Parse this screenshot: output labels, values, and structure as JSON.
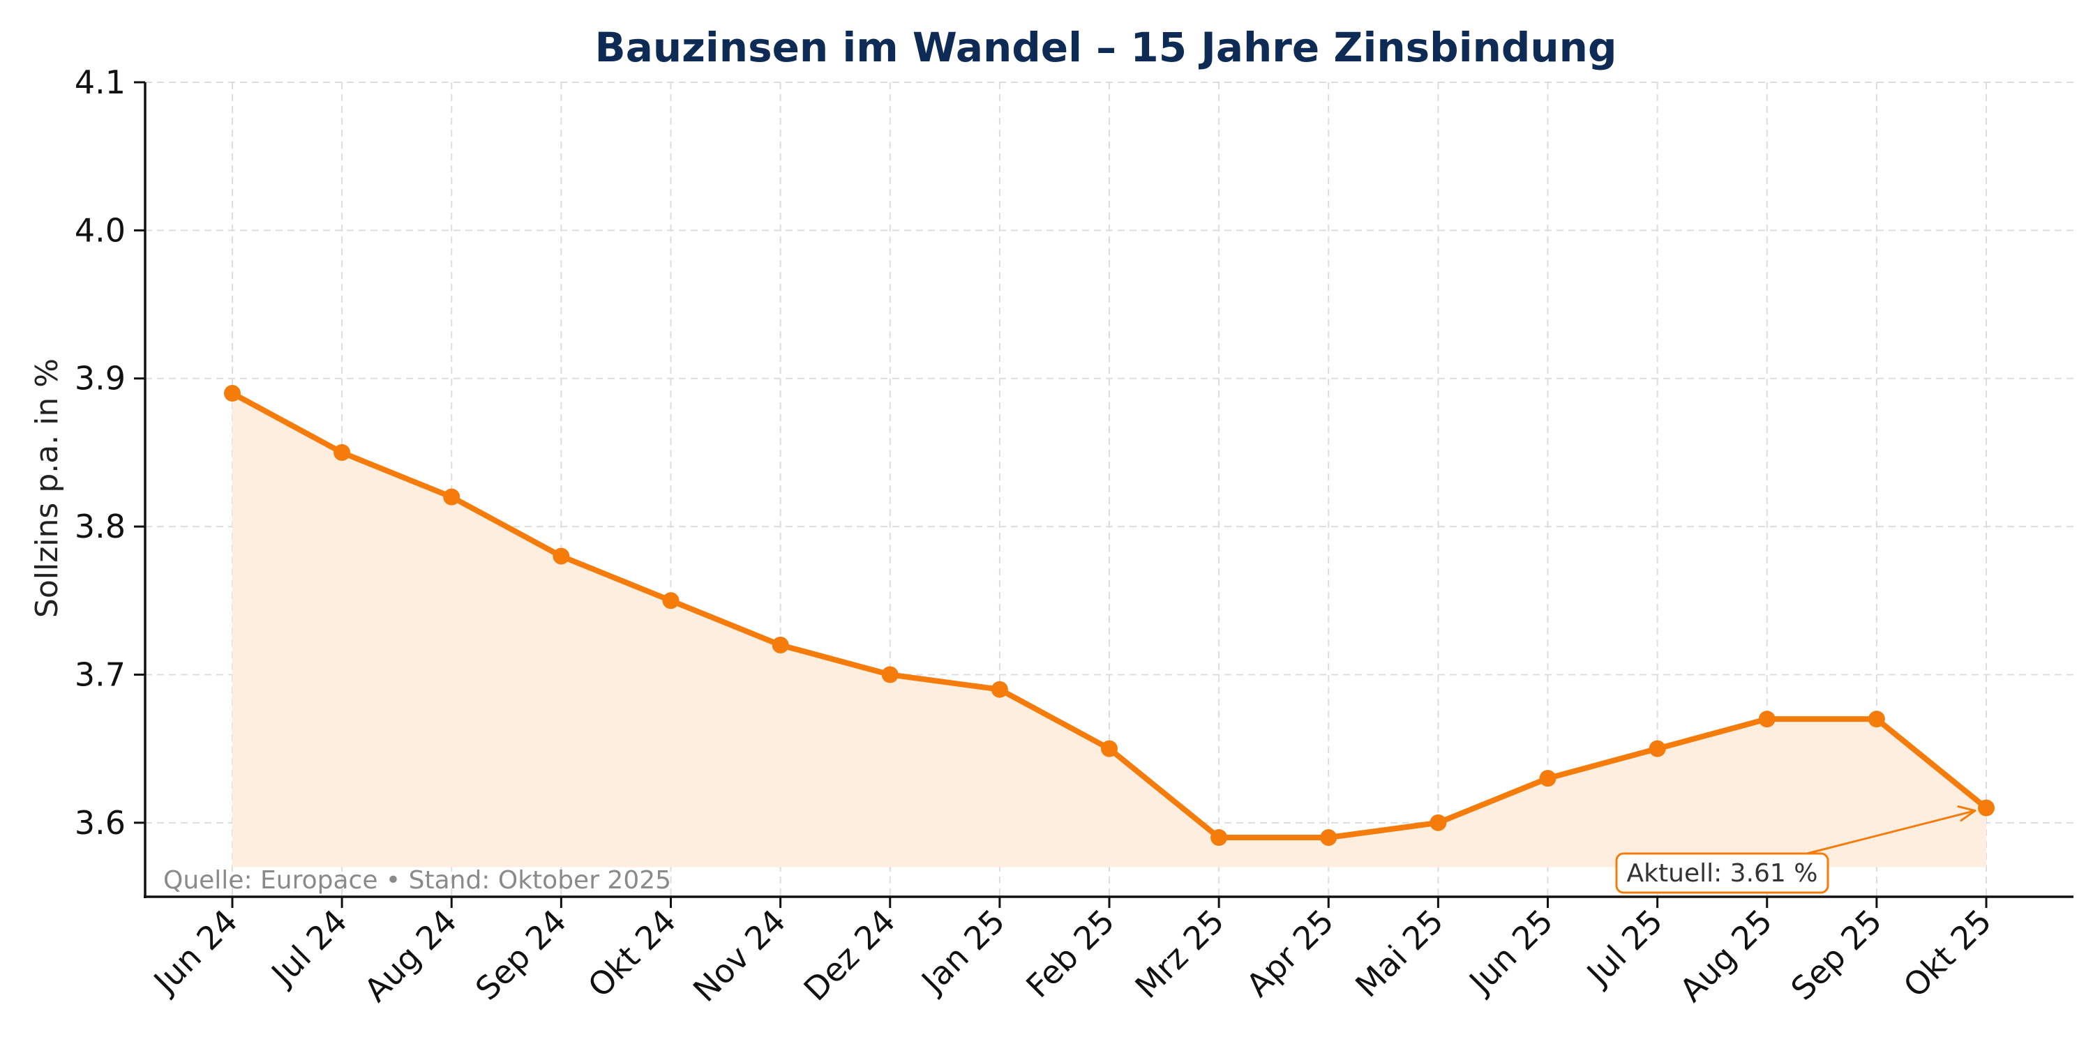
{
  "chart_data": {
    "type": "line",
    "title": "Bauzinsen im Wandel – 15 Jahre Zinsbindung",
    "xlabel": "",
    "ylabel": "Sollzins p.a. in %",
    "categories": [
      "Jun 24",
      "Jul 24",
      "Aug 24",
      "Sep 24",
      "Okt 24",
      "Nov 24",
      "Dez 24",
      "Jan 25",
      "Feb 25",
      "Mrz 25",
      "Apr 25",
      "Mai 25",
      "Jun 25",
      "Jul 25",
      "Aug 25",
      "Sep 25",
      "Okt 25"
    ],
    "series": [
      {
        "values": [
          3.89,
          3.85,
          3.82,
          3.78,
          3.75,
          3.72,
          3.7,
          3.69,
          3.65,
          3.59,
          3.59,
          3.6,
          3.63,
          3.65,
          3.67,
          3.67,
          3.61
        ]
      }
    ],
    "ylim": [
      3.55,
      4.1
    ],
    "yticks": [
      3.6,
      3.7,
      3.8,
      3.9,
      4.0,
      4.1
    ],
    "ytick_labels": [
      "3.6",
      "3.7",
      "3.8",
      "3.9",
      "4.0",
      "4.1"
    ],
    "fill_baseline": 3.57,
    "grid": true,
    "colors": {
      "line": "#f57c0a",
      "fill": "#fdeee0",
      "title": "#0d2b55"
    },
    "annotations": [
      {
        "text": "Aktuell: 3.61 %",
        "target_index": 16
      }
    ],
    "source_note": "Quelle: Europace • Stand: Oktober 2025"
  }
}
